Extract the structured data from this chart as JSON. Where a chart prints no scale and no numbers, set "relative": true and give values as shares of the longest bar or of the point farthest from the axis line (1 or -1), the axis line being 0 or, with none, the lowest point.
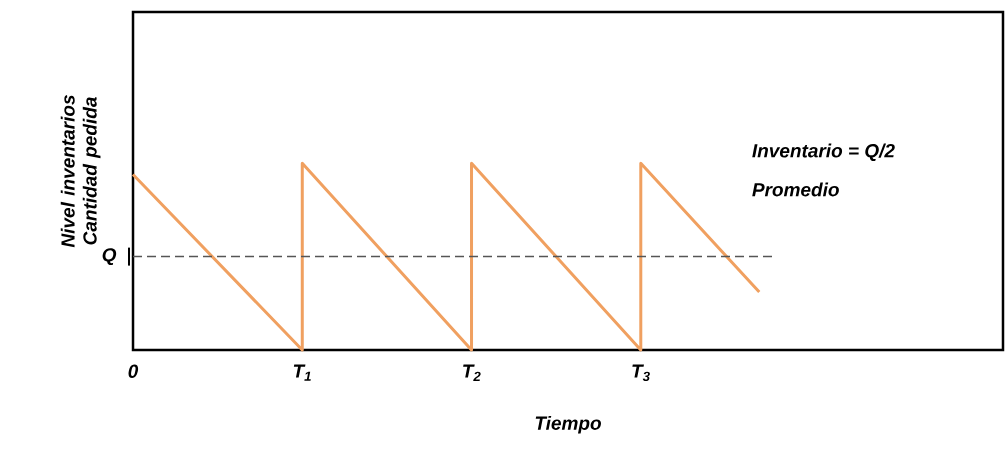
{
  "chart_data": {
    "type": "line",
    "relative": true,
    "xlabel": "Tiempo",
    "ylabel": "Nivel inventarios Cantidad pedida",
    "x": [
      0,
      1,
      1,
      2,
      2,
      3,
      3,
      3.7
    ],
    "values": [
      0.94,
      0,
      1,
      0,
      1,
      0,
      1,
      0.31
    ],
    "color": "#f0a060",
    "xlim": [
      0,
      5.14
    ],
    "xticks": [
      0,
      {
        "value": 1,
        "label": "T$_{1}$"
      },
      {
        "value": 2,
        "label": "T$_{2}$"
      },
      {
        "value": 3,
        "label": "T$_{3}$"
      }
    ],
    "ref_lines": [
      {
        "axis": "y",
        "value": 0.5,
        "label": "Q",
        "color": "#555555",
        "line_style": "dashed"
      }
    ],
    "annotations": [
      "Inventario = Q/2",
      "Promedio"
    ],
    "grid": false,
    "marker": "none",
    "line_style": "solid"
  }
}
